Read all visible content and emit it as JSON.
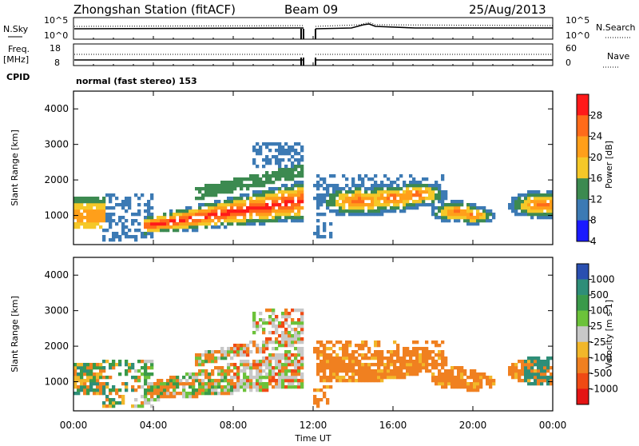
{
  "header": {
    "title": "Zhongshan Station (fitACF)",
    "beam": "Beam 09",
    "date": "25/Aug/2013"
  },
  "panels": {
    "nsky_label": "N.Sky",
    "nsky_top": "10^5",
    "nsky_bottom": "10^0",
    "nsearch_label": "N.Search",
    "nsearch_top": "10^5",
    "nsearch_bottom": "10^0",
    "freq_label": "Freq.",
    "freq_unit": "[MHz]",
    "freq_top": "18",
    "freq_bottom": "8",
    "nave_label": "Nave",
    "nave_top": "60",
    "nave_bottom": "0",
    "cpid_label": "CPID",
    "cpid_text": "normal (fast stereo) 153"
  },
  "chart_data": [
    {
      "type": "heatmap",
      "name": "Power",
      "ylabel": "Slant Range [km]",
      "colorbar_label": "Power [dB]",
      "colorbar_ticks": [
        "28",
        "24",
        "20",
        "16",
        "12",
        "8",
        "4"
      ],
      "colorbar_colors": [
        "#ff1a1a",
        "#ff6b1a",
        "#ff9f1a",
        "#f5c828",
        "#3c8a50",
        "#3c7ab4",
        "#1a1aff"
      ],
      "x_ticks": [
        "00:00",
        "04:00",
        "08:00",
        "12:00",
        "16:00",
        "20:00",
        "00:00"
      ],
      "y_ticks": [
        "1000",
        "2000",
        "3000",
        "4000"
      ],
      "xlim": [
        0,
        24
      ],
      "ylim": [
        180,
        4500
      ]
    },
    {
      "type": "heatmap",
      "name": "Velocity",
      "ylabel": "Slant Range [km]",
      "xlabel": "Time UT",
      "colorbar_label": "Velocity [m s-1]",
      "colorbar_ticks": [
        "1000",
        "500",
        "100",
        "25",
        "-25",
        "-100",
        "-500",
        "-1000"
      ],
      "colorbar_colors": [
        "#2a4fb0",
        "#2e8e78",
        "#3a9a4a",
        "#6cc23a",
        "#c8c8c8",
        "#f2b72a",
        "#f08020",
        "#f04a14",
        "#e41414"
      ],
      "x_ticks": [
        "00:00",
        "04:00",
        "08:00",
        "12:00",
        "16:00",
        "20:00",
        "00:00"
      ],
      "y_ticks": [
        "1000",
        "2000",
        "3000",
        "4000"
      ],
      "xlim": [
        0,
        24
      ],
      "ylim": [
        180,
        4500
      ]
    }
  ]
}
